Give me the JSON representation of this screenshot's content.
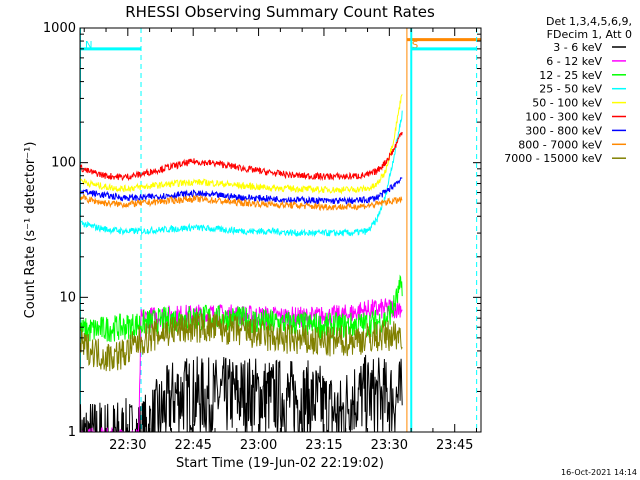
{
  "chart_data": {
    "type": "line",
    "title": "RHESSI Observing Summary Count Rates",
    "xlabel": "Start Time (19-Jun-02 22:19:02)",
    "ylabel": "Count Rate (s⁻¹ detector⁻¹)",
    "x_units": "minutes since 22:19:02",
    "xlim": [
      0,
      92
    ],
    "ylim": [
      1,
      1000
    ],
    "yscale": "log",
    "x_tick_labels": [
      "22:30",
      "22:45",
      "23:00",
      "23:15",
      "23:30",
      "23:45"
    ],
    "x_tick_values": [
      10.97,
      25.97,
      40.97,
      55.97,
      70.97,
      85.97
    ],
    "y_tick_labels": [
      "1",
      "10",
      "100",
      "1000"
    ],
    "y_tick_values": [
      1,
      10,
      100,
      1000
    ],
    "legend_header": [
      "Det 1,3,4,5,6,9,",
      "FDecim 1, Att 0"
    ],
    "series": [
      {
        "name": "3 - 6 keV",
        "color": "#000000",
        "x": [
          0,
          14,
          22,
          30,
          38,
          46,
          54,
          60,
          62,
          66,
          70,
          74
        ],
        "values": [
          0.9,
          0.9,
          1.9,
          1.8,
          1.9,
          1.8,
          1.7,
          1.3,
          1.8,
          1.9,
          1.8,
          1.8
        ]
      },
      {
        "name": "6 - 12 keV",
        "color": "#ff00ff",
        "x": [
          0,
          10,
          13.5,
          14,
          20,
          30,
          40,
          50,
          60,
          65,
          70,
          74
        ],
        "values": [
          0.9,
          0.9,
          0.9,
          7.0,
          7.3,
          7.5,
          7.3,
          7.1,
          7.3,
          8.0,
          8.2,
          8.5
        ]
      },
      {
        "name": "12 - 25 keV",
        "color": "#00ff00",
        "x": [
          0,
          5,
          10,
          14,
          20,
          26,
          32,
          38,
          44,
          50,
          56,
          62,
          66,
          70,
          72,
          74
        ],
        "values": [
          5.6,
          5.8,
          6.0,
          6.4,
          6.8,
          7.1,
          7.0,
          6.8,
          6.5,
          6.3,
          6.1,
          6.2,
          6.3,
          6.8,
          8.5,
          13.0
        ]
      },
      {
        "name": "25 - 50 keV",
        "color": "#00ffff",
        "x": [
          0,
          2,
          6,
          10,
          14,
          20,
          26,
          32,
          38,
          44,
          50,
          56,
          62,
          66,
          68,
          70,
          72,
          74
        ],
        "values": [
          36,
          34,
          32,
          31,
          31,
          32,
          33,
          32,
          31,
          31,
          30,
          30,
          30,
          31,
          37,
          55,
          110,
          240
        ]
      },
      {
        "name": "50 - 100 keV",
        "color": "#ffff00",
        "x": [
          0,
          2,
          6,
          10,
          14,
          20,
          26,
          32,
          38,
          44,
          50,
          56,
          62,
          66,
          68,
          70,
          72,
          74
        ],
        "values": [
          75,
          70,
          66,
          64,
          66,
          69,
          72,
          70,
          67,
          65,
          64,
          63,
          63,
          64,
          68,
          85,
          150,
          350
        ]
      },
      {
        "name": "100 - 300 keV",
        "color": "#ff0000",
        "x": [
          0,
          2,
          6,
          10,
          14,
          20,
          26,
          32,
          38,
          44,
          50,
          56,
          62,
          66,
          68,
          70,
          72,
          74
        ],
        "values": [
          92,
          86,
          80,
          78,
          82,
          92,
          102,
          98,
          90,
          84,
          80,
          79,
          79,
          81,
          86,
          100,
          125,
          175
        ]
      },
      {
        "name": "300 - 800 keV",
        "color": "#0000ff",
        "x": [
          0,
          2,
          6,
          10,
          14,
          20,
          26,
          32,
          38,
          44,
          50,
          56,
          62,
          66,
          68,
          70,
          72,
          74
        ],
        "values": [
          62,
          60,
          57,
          55,
          55,
          57,
          59,
          57,
          55,
          54,
          53,
          52,
          52,
          53,
          55,
          60,
          68,
          78
        ]
      },
      {
        "name": "800 - 7000 keV",
        "color": "#ff8800",
        "x": [
          0,
          2,
          6,
          10,
          14,
          20,
          26,
          32,
          38,
          44,
          50,
          56,
          62,
          66,
          68,
          70,
          72,
          74
        ],
        "values": [
          56,
          53,
          50,
          49,
          50,
          52,
          54,
          52,
          50,
          49,
          48,
          47,
          47,
          48,
          49,
          51,
          52,
          53
        ]
      },
      {
        "name": "7000 - 15000 keV",
        "color": "#808000",
        "x": [
          0,
          3,
          6,
          10,
          14,
          20,
          26,
          32,
          38,
          44,
          50,
          56,
          62,
          66,
          70,
          74
        ],
        "values": [
          4.5,
          4.0,
          3.6,
          3.8,
          4.8,
          5.6,
          6.0,
          5.9,
          5.5,
          5.0,
          4.8,
          4.6,
          4.8,
          5.0,
          5.2,
          5.4
        ]
      }
    ],
    "annotations": [
      {
        "label": "N",
        "type": "night",
        "color": "#00ffff",
        "start": 0,
        "end": 14,
        "level": 700
      },
      {
        "label": "S",
        "type": "saa",
        "color": "#ff8800",
        "start": 75,
        "end": 92,
        "level": 820
      },
      {
        "label": "",
        "type": "night",
        "color": "#00ffff",
        "start": 76,
        "end": 91,
        "level": 700
      }
    ],
    "footer_text": "16-Oct-2021 14:14"
  }
}
